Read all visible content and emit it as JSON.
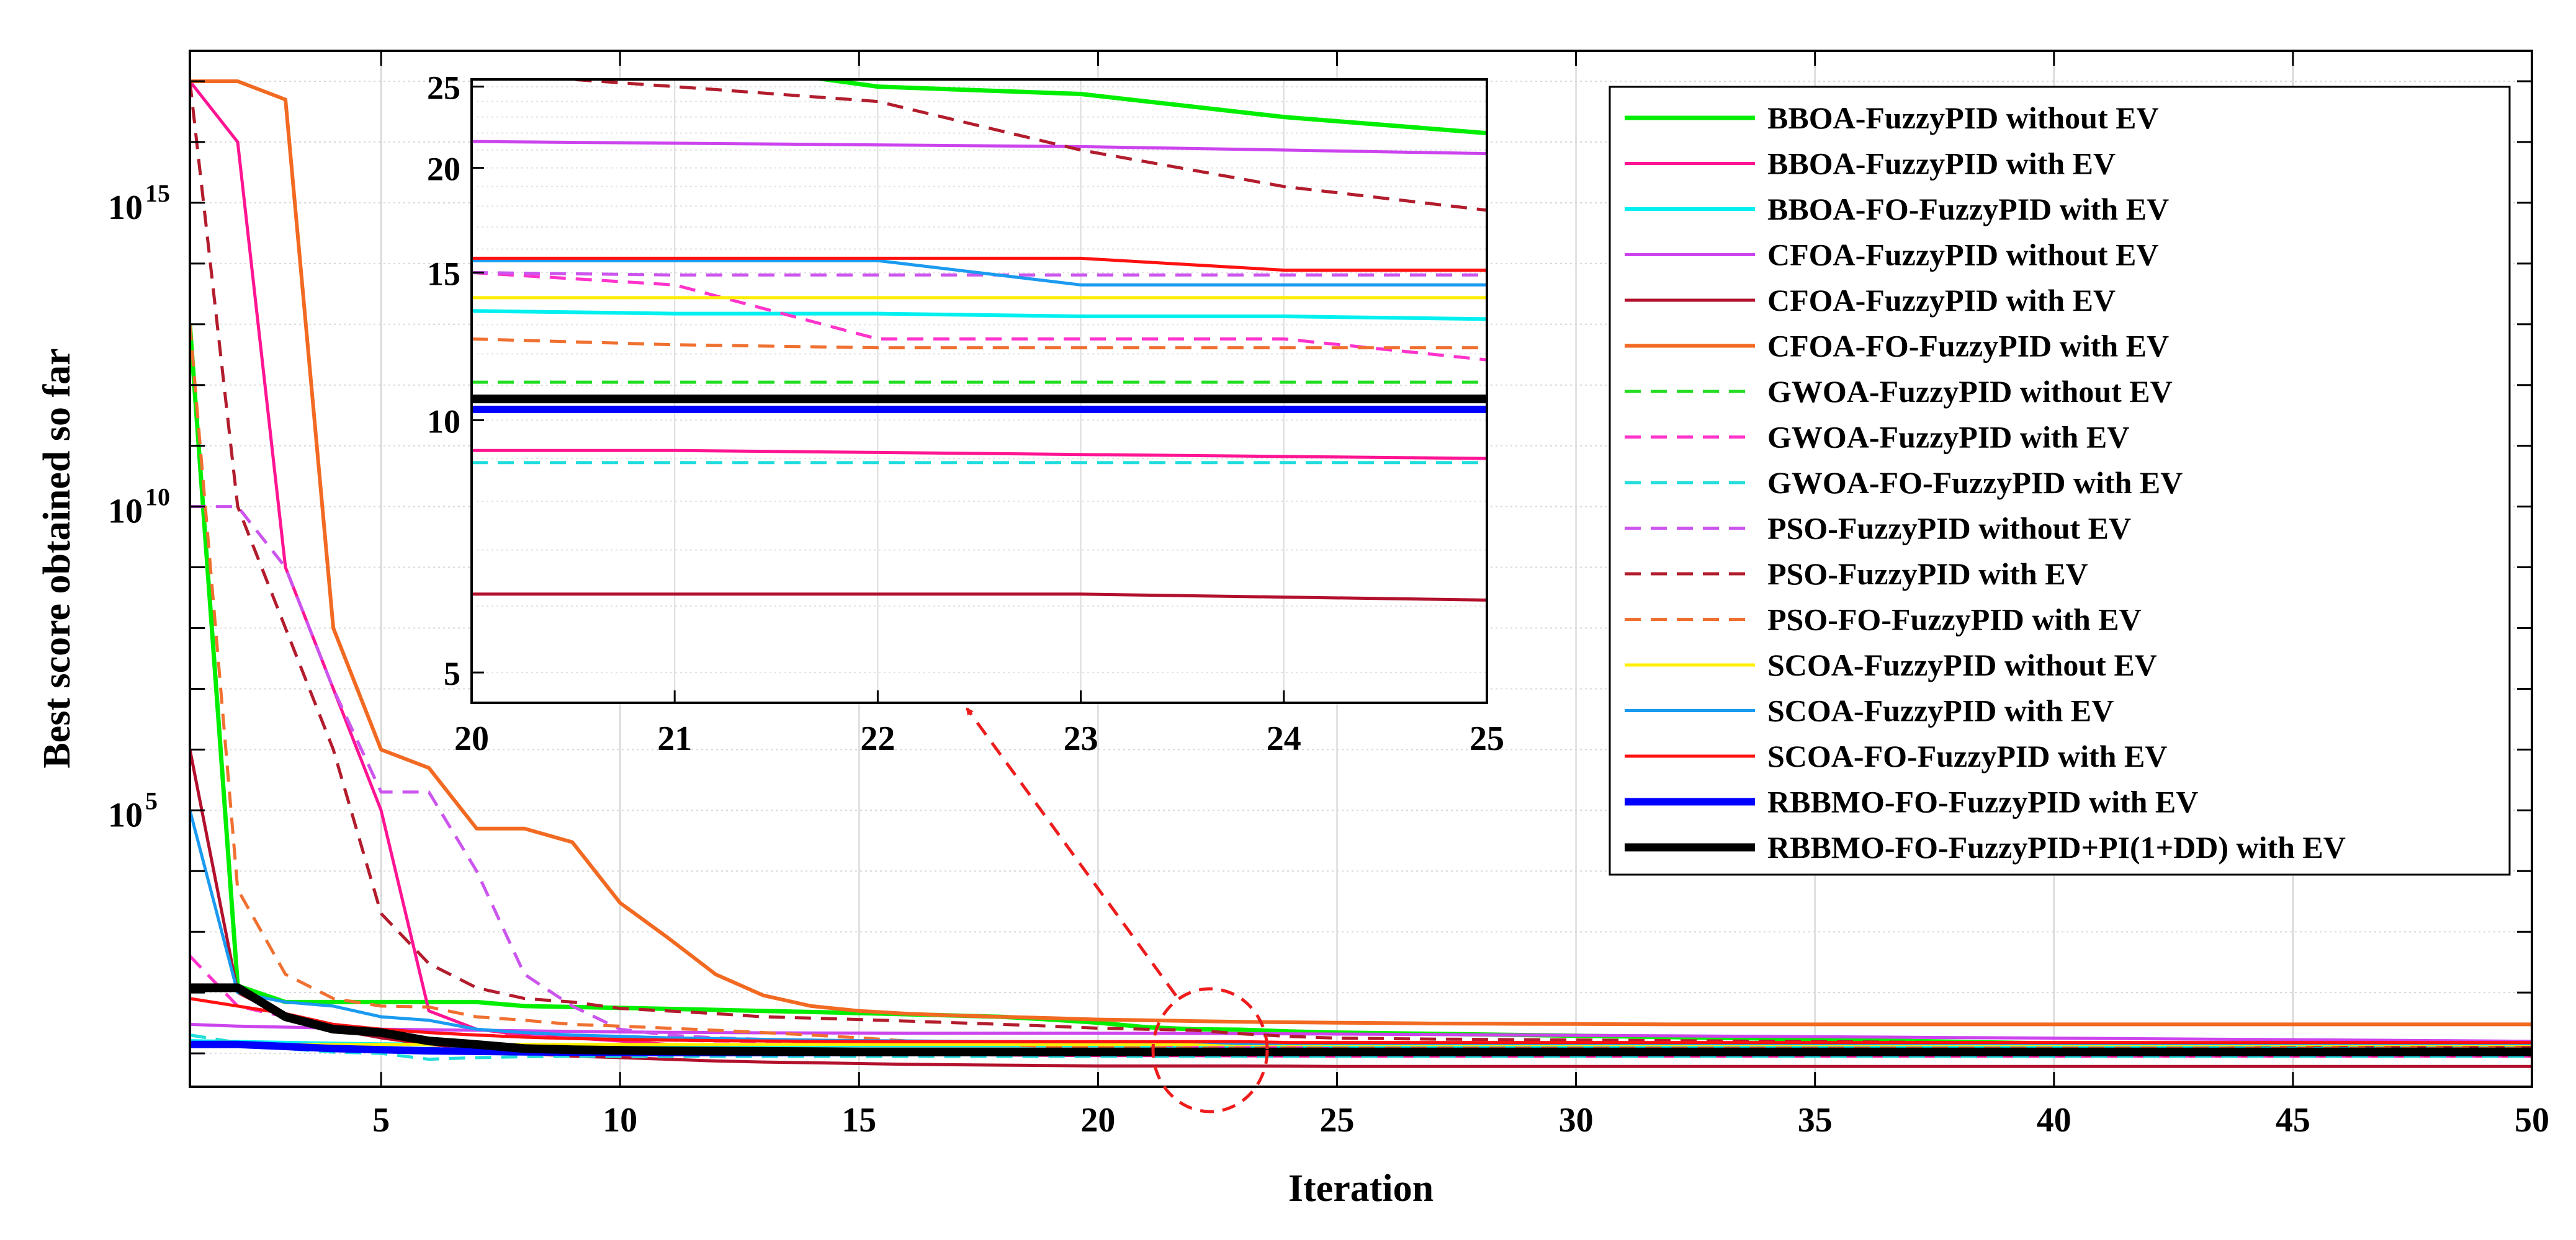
{
  "chart_data": {
    "type": "line",
    "ylabel": "Best score obtained so far",
    "xlabel": "Iteration",
    "yscale": "log",
    "xlim": [
      1,
      50
    ],
    "ylim_log10": [
      0.45,
      17.5
    ],
    "x_ticks": [
      5,
      10,
      15,
      20,
      25,
      30,
      35,
      40,
      45,
      50
    ],
    "y_ticks": [
      {
        "exp": 15,
        "base": "10",
        "sup": "15"
      },
      {
        "exp": 10,
        "base": "10",
        "sup": "10"
      },
      {
        "exp": 5,
        "base": "10",
        "sup": "5"
      }
    ],
    "grid": true,
    "legend_position": "top-right",
    "x": [
      1,
      2,
      3,
      4,
      5,
      6,
      7,
      8,
      9,
      10,
      11,
      12,
      13,
      14,
      15,
      16,
      17,
      18,
      19,
      20,
      21,
      22,
      23,
      24,
      25,
      26,
      27,
      28,
      29,
      30,
      31,
      32,
      33,
      34,
      35,
      36,
      37,
      38,
      39,
      40,
      41,
      42,
      43,
      44,
      45,
      46,
      47,
      48,
      49,
      50
    ],
    "series": [
      {
        "name": "BBOA-FuzzyPID without EV",
        "color": "#00ee00",
        "style": "solid",
        "width": 7,
        "values": [
          10000000000000.0,
          130,
          70,
          70,
          70,
          70,
          70,
          60,
          58,
          56,
          54,
          52,
          50,
          48,
          46,
          44,
          42,
          40,
          36,
          32,
          27,
          25,
          24.5,
          23,
          22,
          21.5,
          21,
          20.5,
          20,
          19.5,
          19,
          18.5,
          18,
          17.5,
          17,
          16.5,
          16,
          15.5,
          15,
          14.5,
          14,
          13.5,
          13,
          12.5,
          12,
          11.5,
          11,
          10.5,
          10.2,
          10.0
        ]
      },
      {
        "name": "BBOA-FuzzyPID with EV",
        "color": "#ff1493",
        "style": "solid",
        "width": 5,
        "values": [
          1e+17,
          1e+16,
          1000000000.0,
          10000000.0,
          100000.0,
          50,
          25,
          20,
          18,
          16,
          14,
          13,
          12,
          11,
          10.5,
          10,
          9.6,
          9.4,
          9.3,
          9.2,
          9.2,
          9.15,
          9.1,
          9.05,
          9.0,
          9.0,
          9.0,
          9.0,
          9.0,
          9.0,
          9.0,
          9.0,
          9.0,
          9.0,
          9.0,
          9.0,
          9.0,
          9.0,
          9.0,
          9.0,
          9.0,
          9.0,
          9.0,
          9.0,
          9.0,
          9.0,
          9.0,
          9.0,
          9.0,
          9.0
        ]
      },
      {
        "name": "BBOA-FO-FuzzyPID with EV",
        "color": "#00f0f0",
        "style": "solid",
        "width": 6,
        "values": [
          16,
          15.5,
          15,
          14.5,
          14.2,
          14,
          13.8,
          13.7,
          13.6,
          13.5,
          13.5,
          13.5,
          13.5,
          13.5,
          13.5,
          13.5,
          13.5,
          13.5,
          13.5,
          13.5,
          13.4,
          13.4,
          13.3,
          13.3,
          13.2,
          13.2,
          13.2,
          13.2,
          13.2,
          13.2,
          13.2,
          13.2,
          13.2,
          13.2,
          13.2,
          13.2,
          13.2,
          13.2,
          13.2,
          13.2,
          13.2,
          13.2,
          13.2,
          13.2,
          13.2,
          13.2,
          13.2,
          13.2,
          13.2,
          13.2
        ]
      },
      {
        "name": "CFOA-FuzzyPID without EV",
        "color": "#cc44ee",
        "style": "solid",
        "width": 5,
        "values": [
          30,
          28,
          27,
          26,
          25,
          24.5,
          24,
          23.5,
          23,
          22.5,
          22.2,
          22,
          21.8,
          21.7,
          21.6,
          21.5,
          21.5,
          21.5,
          21.5,
          21.5,
          21.4,
          21.3,
          21.2,
          21.0,
          20.8,
          20.6,
          20.4,
          20.2,
          20,
          19.8,
          19.6,
          19.4,
          19.2,
          19,
          18.8,
          18.6,
          18.4,
          18.2,
          18,
          17.8,
          17.6,
          17.4,
          17.2,
          17,
          16.8,
          16.6,
          16.4,
          16.2,
          16,
          15.8
        ]
      },
      {
        "name": "CFOA-FuzzyPID with EV",
        "color": "#b2102c",
        "style": "solid",
        "width": 5,
        "values": [
          1000000.0,
          100,
          40,
          25,
          18,
          14,
          12,
          10,
          9,
          8.5,
          8,
          7.5,
          7.2,
          7,
          6.8,
          6.6,
          6.5,
          6.4,
          6.3,
          6.2,
          6.2,
          6.2,
          6.2,
          6.15,
          6.1,
          6.1,
          6.1,
          6.1,
          6.1,
          6.1,
          6.1,
          6.1,
          6.1,
          6.1,
          6.1,
          6.1,
          6.1,
          6.1,
          6.1,
          6.1,
          6.1,
          6.1,
          6.1,
          6.1,
          6.1,
          6.1,
          6.1,
          6.1,
          6.1,
          6.1
        ]
      },
      {
        "name": "CFOA-FO-FuzzyPID with EV",
        "color": "#f26a22",
        "style": "solid",
        "width": 6,
        "values": [
          1e+17,
          1e+17,
          5e+16,
          100000000.0,
          1000000.0,
          500000.0,
          50000.0,
          50000.0,
          30000.0,
          3000,
          800,
          200,
          90,
          60,
          50,
          45,
          42,
          40,
          38,
          36,
          35,
          34,
          33,
          32.5,
          32,
          31.5,
          31,
          30.8,
          30.6,
          30.4,
          30.2,
          30,
          30,
          30,
          30,
          30,
          30,
          30,
          30,
          30,
          30,
          30,
          30,
          30,
          30,
          30,
          30,
          30,
          30,
          30
        ]
      },
      {
        "name": "GWOA-FuzzyPID without EV",
        "color": "#22dd22",
        "style": "dashed",
        "width": 5,
        "values": [
          20,
          15,
          13,
          12.5,
          12,
          12,
          11.8,
          11.6,
          11.5,
          11.4,
          11.3,
          11.2,
          11.2,
          11.2,
          11.1,
          11.1,
          11.1,
          11.1,
          11.1,
          11.1,
          11.1,
          11.1,
          11.1,
          11.1,
          11.1,
          11.1,
          11.1,
          11.1,
          11.1,
          11.1,
          11.1,
          11.1,
          11.1,
          11.1,
          11.1,
          11.1,
          11.1,
          11.1,
          11.1,
          11.1,
          11.1,
          11.1,
          11.1,
          11.1,
          11.1,
          11.1,
          11.1,
          11.1,
          11.1,
          11.1
        ]
      },
      {
        "name": "GWOA-FuzzyPID with EV",
        "color": "#ff33cc",
        "style": "dashed",
        "width": 5,
        "values": [
          400,
          60,
          40,
          30,
          25,
          22,
          20,
          19,
          18,
          17,
          16.5,
          16,
          15.8,
          15.6,
          15.5,
          15.4,
          15.3,
          15.2,
          15.1,
          15,
          14.5,
          12.5,
          12.5,
          12.5,
          11.8,
          11.5,
          11.2,
          11,
          10.8,
          10.6,
          10.4,
          10.2,
          10,
          9.9,
          9.8,
          9.7,
          9.6,
          9.5,
          9.4,
          9.3,
          9.2,
          9.1,
          9.0,
          9.0,
          9.0,
          9.0,
          9.0,
          9.0,
          9.0,
          9.0
        ]
      },
      {
        "name": "GWOA-FO-FuzzyPID with EV",
        "color": "#22dddd",
        "style": "dashed",
        "width": 5,
        "values": [
          20,
          15,
          12,
          10.5,
          10,
          8,
          8.5,
          8.8,
          9,
          8.9,
          8.9,
          8.9,
          8.9,
          8.9,
          8.9,
          8.9,
          8.9,
          8.9,
          8.9,
          8.9,
          8.9,
          8.9,
          8.9,
          8.9,
          8.9,
          8.9,
          8.9,
          8.9,
          8.9,
          8.9,
          8.9,
          8.9,
          8.9,
          8.9,
          8.9,
          8.9,
          8.9,
          8.9,
          8.9,
          8.9,
          8.9,
          8.9,
          8.9,
          8.9,
          8.9,
          8.9,
          8.9,
          8.9,
          8.9,
          8.9
        ]
      },
      {
        "name": "PSO-FuzzyPID without EV",
        "color": "#cc55ee",
        "style": "dashed",
        "width": 5,
        "values": [
          10000000000.0,
          10000000000.0,
          1000000000.0,
          10000000.0,
          200000.0,
          200000.0,
          10000.0,
          200,
          60,
          25,
          20,
          18,
          17,
          16.5,
          16,
          15.6,
          15.3,
          15.1,
          15,
          15,
          14.9,
          14.9,
          14.9,
          14.9,
          14.9,
          14.9,
          14.9,
          14.9,
          14.9,
          14.9,
          14.9,
          14.9,
          14.9,
          14.9,
          14.9,
          14.9,
          14.9,
          14.9,
          14.9,
          14.9,
          14.9,
          14.9,
          14.9,
          14.9,
          14.9,
          14.9,
          14.9,
          14.9,
          14.9,
          14.9
        ]
      },
      {
        "name": "PSO-FuzzyPID with EV",
        "color": "#b21c2c",
        "style": "dashed",
        "width": 5,
        "values": [
          1e+17,
          10000000000.0,
          100000000.0,
          1000000.0,
          2000,
          300,
          120,
          80,
          70,
          55,
          50,
          45,
          40,
          38,
          36,
          34,
          32,
          30,
          28,
          26,
          25,
          24,
          21,
          19,
          17.8,
          17.5,
          17.2,
          17,
          16.8,
          16.6,
          16.4,
          16.2,
          16,
          15.8,
          15.6,
          15.4,
          15.2,
          15,
          14.8,
          14.6,
          14.4,
          14.2,
          14,
          13.8,
          13.6,
          13.4,
          13.2,
          13,
          12.8,
          12.6
        ]
      },
      {
        "name": "PSO-FO-FuzzyPID with EV",
        "color": "#f07030",
        "style": "dashed",
        "width": 5,
        "values": [
          10000000000000.0,
          5000,
          200,
          80,
          60,
          58,
          40,
          35,
          30,
          28,
          26,
          24,
          22,
          20,
          18,
          16,
          15,
          14,
          13,
          12.5,
          12.3,
          12.2,
          12.2,
          12.2,
          12.2,
          12.2,
          12.2,
          12.2,
          12.2,
          12.2,
          12.2,
          12.2,
          12.2,
          12.2,
          12.2,
          12.2,
          12.2,
          12.2,
          12.2,
          12.2,
          12.2,
          12.2,
          12.2,
          12.2,
          12.2,
          12.2,
          12.2,
          12.2,
          12.2,
          12.2
        ]
      },
      {
        "name": "SCOA-FuzzyPID without EV",
        "color": "#ffee00",
        "style": "solid",
        "width": 5,
        "values": [
          14,
          14,
          14,
          14,
          14,
          14,
          14,
          14,
          14,
          14,
          14,
          14,
          14,
          14,
          14,
          14,
          14,
          14,
          14,
          14,
          14,
          14,
          14,
          14,
          14,
          14,
          14,
          14,
          14,
          14,
          14,
          14,
          14,
          14,
          14,
          14,
          14,
          14,
          14,
          14,
          14,
          14,
          14,
          14,
          14,
          14,
          14,
          14,
          14,
          14
        ]
      },
      {
        "name": "SCOA-FuzzyPID with EV",
        "color": "#1a9af0",
        "style": "solid",
        "width": 5,
        "values": [
          100000.0,
          100,
          70,
          60,
          40,
          35,
          25,
          22,
          20,
          19,
          18,
          17.5,
          17,
          16.5,
          16.2,
          16,
          15.8,
          15.6,
          15.5,
          15.5,
          15.5,
          15.5,
          14.5,
          14.5,
          14.5,
          14.5,
          14.5,
          14.5,
          14.5,
          14.5,
          14.5,
          14.5,
          14.5,
          14.5,
          14.5,
          14.5,
          14.5,
          14.5,
          14.5,
          14.5,
          14.5,
          14.5,
          14.5,
          14.5,
          14.5,
          14.5,
          14.5,
          14.5,
          14.5,
          14.5
        ]
      },
      {
        "name": "SCOA-FO-FuzzyPID with EV",
        "color": "#ff1111",
        "style": "solid",
        "width": 5,
        "values": [
          80,
          60,
          45,
          30,
          25,
          22,
          20,
          18.5,
          17.5,
          17,
          16.5,
          16.2,
          16,
          15.8,
          15.7,
          15.6,
          15.6,
          15.6,
          15.6,
          15.6,
          15.6,
          15.6,
          15.6,
          15.1,
          15.1,
          15.1,
          15.1,
          15.1,
          15.1,
          15.1,
          15.1,
          15.1,
          15.1,
          15.1,
          15.1,
          15.1,
          15.1,
          15.1,
          15.1,
          15.1,
          15.1,
          15.1,
          15.1,
          15.1,
          15.1,
          15.1,
          15.1,
          15.1,
          15.1,
          15.1
        ]
      },
      {
        "name": "RBBMO-FO-FuzzyPID with EV",
        "color": "#0000ff",
        "style": "solid",
        "width": 12,
        "values": [
          14,
          14,
          13,
          12,
          11.5,
          11,
          10.8,
          10.6,
          10.5,
          10.4,
          10.3,
          10.3,
          10.3,
          10.3,
          10.3,
          10.3,
          10.3,
          10.3,
          10.3,
          10.3,
          10.3,
          10.3,
          10.3,
          10.3,
          10.3,
          10.3,
          10.3,
          10.3,
          10.3,
          10.3,
          10.3,
          10.3,
          10.3,
          10.3,
          10.3,
          10.3,
          10.3,
          10.3,
          10.3,
          10.3,
          10.3,
          10.3,
          10.3,
          10.3,
          10.3,
          10.3,
          10.3,
          10.3,
          10.3,
          10.3
        ]
      },
      {
        "name": "RBBMO-FO-FuzzyPID+PI(1+DD) with EV",
        "color": "#000000",
        "style": "solid",
        "width": 14,
        "values": [
          120,
          120,
          40,
          25,
          22,
          16,
          14,
          12,
          11.5,
          11.2,
          11,
          10.9,
          10.8,
          10.7,
          10.6,
          10.6,
          10.6,
          10.6,
          10.6,
          10.6,
          10.6,
          10.6,
          10.6,
          10.6,
          10.6,
          10.6,
          10.6,
          10.6,
          10.6,
          10.6,
          10.6,
          10.6,
          10.6,
          10.6,
          10.6,
          10.6,
          10.6,
          10.6,
          10.6,
          10.6,
          10.6,
          10.6,
          10.6,
          10.6,
          10.6,
          10.6,
          10.6,
          10.6,
          10.6,
          10.6
        ]
      }
    ],
    "inset": {
      "xlim": [
        20,
        25
      ],
      "ylim": [
        4.6,
        25.5
      ],
      "yscale": "log",
      "x_ticks": [
        20,
        21,
        22,
        23,
        24,
        25
      ],
      "y_ticks": [
        5,
        10,
        15,
        20,
        25
      ]
    },
    "callout": {
      "x": 22.4,
      "y": 14,
      "description": "dashed ellipse with arrow pointing to inset"
    }
  }
}
